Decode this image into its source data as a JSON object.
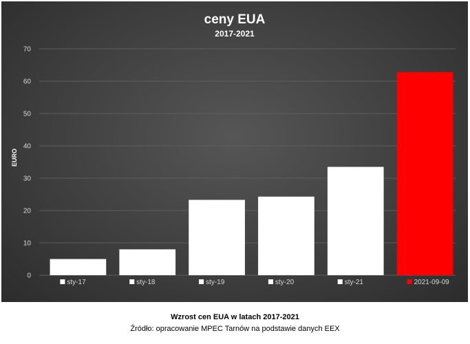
{
  "chart_data": {
    "type": "bar",
    "title": "ceny EUA",
    "subtitle": "2017-2021",
    "ylabel": "EURO",
    "xlabel": "",
    "ylim": [
      0,
      70
    ],
    "yticks": [
      0,
      10,
      20,
      30,
      40,
      50,
      60,
      70
    ],
    "grid": true,
    "legend_position": "bottom",
    "categories": [
      "sty-17",
      "sty-18",
      "sty-19",
      "sty-20",
      "sty-21",
      "2021-09-09"
    ],
    "values": [
      5,
      8,
      23.3,
      24.3,
      33.5,
      62.8
    ],
    "colors": [
      "#ffffff",
      "#ffffff",
      "#ffffff",
      "#ffffff",
      "#ffffff",
      "#ff0000"
    ]
  },
  "caption": {
    "title": "Wzrost cen EUA w latach 2017-2021",
    "source": "Źródło: opracowanie MPEC Tarnów na podstawie danych EEX"
  }
}
